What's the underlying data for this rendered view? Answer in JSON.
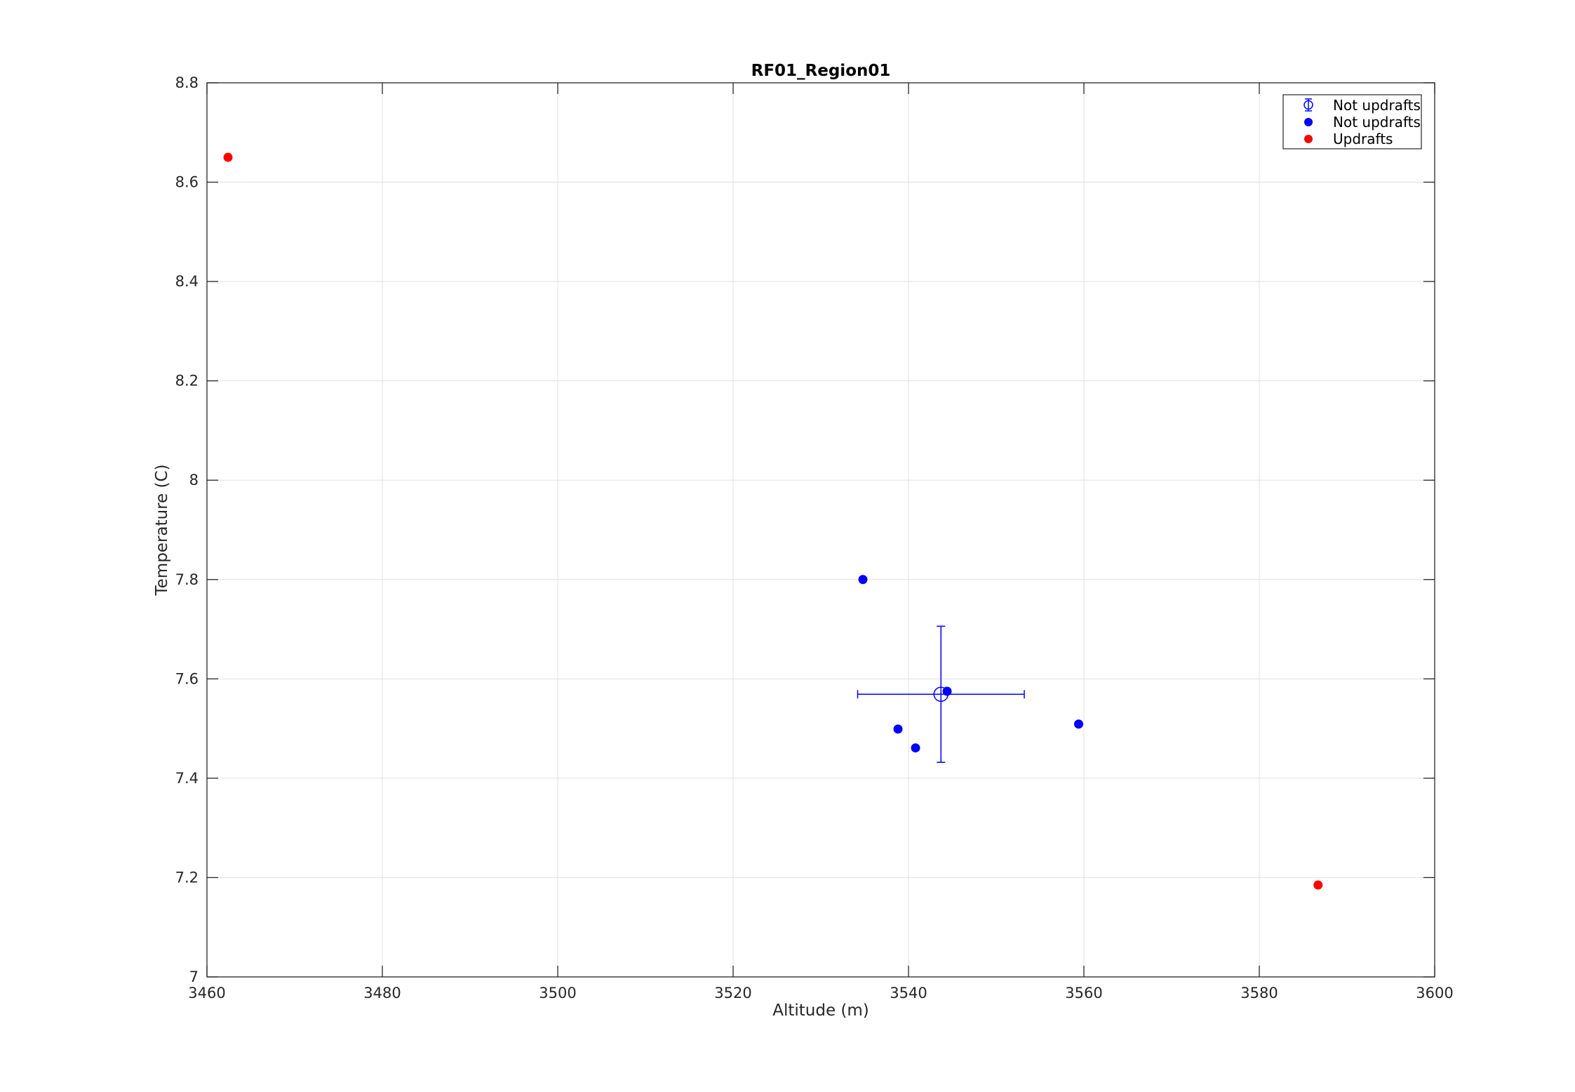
{
  "chart_data": {
    "type": "scatter",
    "title": "RF01_Region01",
    "xlabel": "Altitude (m)",
    "ylabel": "Temperature (C)",
    "xlim": [
      3460,
      3600
    ],
    "ylim": [
      7,
      8.8
    ],
    "x_ticks": [
      "3460",
      "3480",
      "3500",
      "3520",
      "3540",
      "3560",
      "3580",
      "3600"
    ],
    "y_ticks": [
      "7",
      "7.2",
      "7.4",
      "7.6",
      "7.8",
      "8",
      "8.2",
      "8.4",
      "8.6",
      "8.8"
    ],
    "grid": true,
    "legend_position": "top-right",
    "series": [
      {
        "name": "Not updrafts",
        "kind": "errorbar",
        "color": "#0000ff",
        "marker": "open-circle",
        "points": [
          {
            "x": 3543.7,
            "y": 7.569,
            "x_err": 9.5,
            "y_err": 0.137
          }
        ]
      },
      {
        "name": "Not updrafts",
        "kind": "scatter",
        "color": "#0000ff",
        "marker": "filled-circle",
        "points": [
          {
            "x": 3534.8,
            "y": 7.8
          },
          {
            "x": 3544.4,
            "y": 7.575
          },
          {
            "x": 3538.8,
            "y": 7.499
          },
          {
            "x": 3540.8,
            "y": 7.461
          },
          {
            "x": 3559.4,
            "y": 7.509
          }
        ]
      },
      {
        "name": "Updrafts",
        "kind": "scatter",
        "color": "#ff0000",
        "marker": "filled-circle",
        "points": [
          {
            "x": 3462.4,
            "y": 8.65
          },
          {
            "x": 3586.7,
            "y": 7.185
          }
        ]
      }
    ]
  }
}
